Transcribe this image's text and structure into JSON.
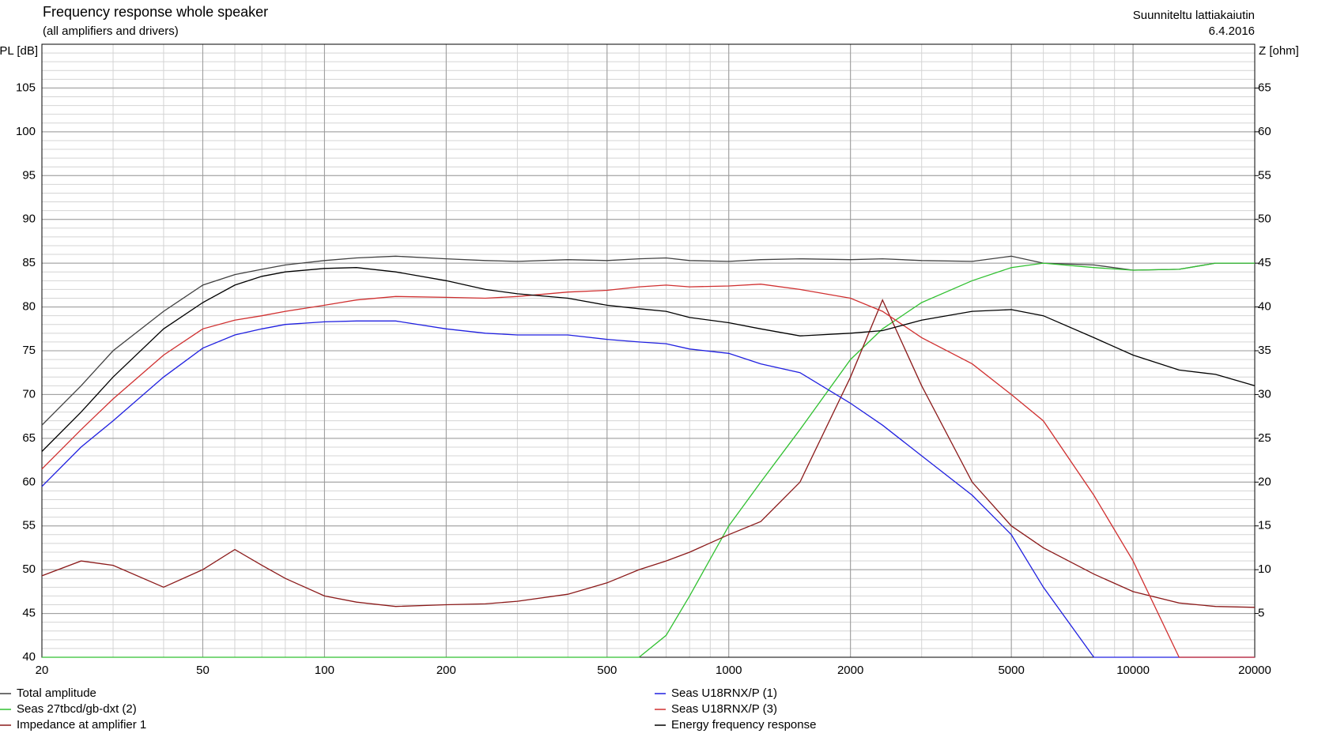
{
  "chart_data": {
    "type": "line",
    "title": "Frequency response whole speaker",
    "subtitle": "(all amplifiers and drivers)",
    "annotations": [
      "Suunniteltu lattiakaiutin",
      "6.4.2016"
    ],
    "y_label": "PL [dB]",
    "y2_label": "Z [ohm]",
    "x_scale": "log",
    "grid": true,
    "xlim": [
      20,
      20000
    ],
    "xticks": [
      20,
      50,
      100,
      200,
      500,
      1000,
      2000,
      5000,
      10000,
      20000
    ],
    "ylim": [
      40,
      110
    ],
    "yticks": [
      40,
      45,
      50,
      55,
      60,
      65,
      70,
      75,
      80,
      85,
      90,
      95,
      100,
      105
    ],
    "y2lim": [
      0,
      70
    ],
    "y2ticks": [
      5,
      10,
      15,
      20,
      25,
      30,
      35,
      40,
      45,
      50,
      55,
      60,
      65
    ],
    "x": [
      20,
      25,
      30,
      40,
      50,
      60,
      70,
      80,
      100,
      120,
      150,
      200,
      250,
      300,
      400,
      500,
      600,
      700,
      800,
      1000,
      1200,
      1500,
      2000,
      2400,
      3000,
      4000,
      5000,
      6000,
      8000,
      10000,
      13000,
      16000,
      20000
    ],
    "series": [
      {
        "name": "Total amplitude",
        "color": "#404040",
        "values": [
          66.5,
          71,
          75,
          79.5,
          82.5,
          83.7,
          84.3,
          84.8,
          85.3,
          85.6,
          85.8,
          85.5,
          85.3,
          85.2,
          85.4,
          85.3,
          85.5,
          85.6,
          85.3,
          85.2,
          85.4,
          85.5,
          85.4,
          85.5,
          85.3,
          85.2,
          85.8,
          85,
          84.8,
          84.2,
          84.3,
          85,
          85
        ]
      },
      {
        "name": "Seas 27tbcd/gb-dxt (2)",
        "color": "#30c030",
        "values": [
          40,
          40,
          40,
          40,
          40,
          40,
          40,
          40,
          40,
          40,
          40,
          40,
          40,
          40,
          40,
          40,
          40,
          42.5,
          47,
          55,
          60,
          66,
          74,
          77.5,
          80.5,
          83,
          84.5,
          85,
          84.5,
          84.2,
          84.3,
          85,
          85
        ]
      },
      {
        "name": "Impedance at amplifier 1",
        "color": "#8b1a1a",
        "axis": "y2",
        "values": [
          9.3,
          11,
          10.5,
          8,
          10,
          12.3,
          10.5,
          9,
          7,
          6.3,
          5.8,
          6,
          6.1,
          6.4,
          7.2,
          8.5,
          10,
          11,
          12,
          14,
          15.5,
          20,
          32,
          40.8,
          31,
          20,
          15,
          12.5,
          9.5,
          7.5,
          6.2,
          5.8,
          5.7
        ]
      },
      {
        "name": "Seas U18RNX/P (1)",
        "color": "#2020e0",
        "values": [
          59.5,
          64,
          67,
          72,
          75.3,
          76.8,
          77.5,
          78,
          78.3,
          78.4,
          78.4,
          77.5,
          77,
          76.8,
          76.8,
          76.3,
          76,
          75.8,
          75.2,
          74.7,
          73.5,
          72.5,
          69,
          66.5,
          63,
          58.5,
          54,
          48,
          40,
          40,
          40,
          40,
          40
        ]
      },
      {
        "name": "Seas U18RNX/P (3)",
        "color": "#d03030",
        "values": [
          61.5,
          66,
          69.5,
          74.5,
          77.5,
          78.5,
          79,
          79.5,
          80.2,
          80.8,
          81.2,
          81.1,
          81,
          81.2,
          81.7,
          81.9,
          82.3,
          82.5,
          82.3,
          82.4,
          82.6,
          82,
          81,
          79.5,
          76.5,
          73.5,
          70,
          67,
          58.5,
          51,
          40,
          40,
          40
        ]
      },
      {
        "name": "Energy frequency response",
        "color": "#000000",
        "values": [
          63.5,
          68,
          72,
          77.5,
          80.5,
          82.5,
          83.5,
          84,
          84.4,
          84.5,
          84,
          83,
          82,
          81.5,
          81,
          80.2,
          79.8,
          79.5,
          78.8,
          78.2,
          77.5,
          76.7,
          77,
          77.3,
          78.5,
          79.5,
          79.7,
          79,
          76.5,
          74.5,
          72.8,
          72.3,
          71
        ]
      }
    ]
  }
}
